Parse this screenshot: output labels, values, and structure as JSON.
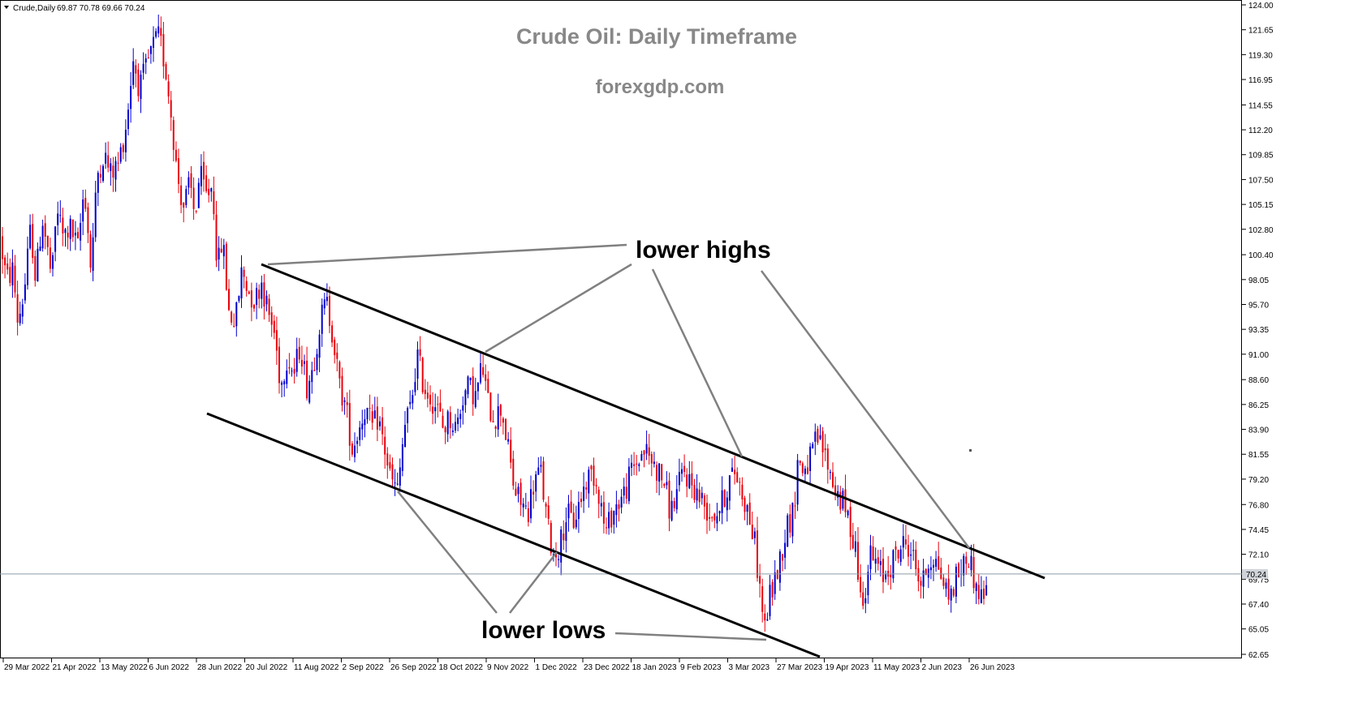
{
  "chart_data": {
    "type": "candlestick",
    "title": "Crude Oil: Daily Timeframe",
    "subtitle": "forexgdp.com",
    "header": {
      "symbol": "Crude,Daily",
      "ohlc": "69.87 70.78 69.66 70.24"
    },
    "last_price": "70.24",
    "colors": {
      "up": "#0000cc",
      "down": "#e8000b",
      "trendline": "#000000",
      "annotation_line": "#808080",
      "title": "#888888",
      "price_line": "#8c9aa6"
    },
    "y_range": [
      62.65,
      124.0
    ],
    "y_ticks": [
      "124.00",
      "121.65",
      "119.30",
      "116.95",
      "114.55",
      "112.20",
      "109.85",
      "107.50",
      "105.15",
      "102.80",
      "100.40",
      "98.05",
      "95.70",
      "93.35",
      "91.00",
      "88.60",
      "86.25",
      "83.90",
      "81.55",
      "79.20",
      "76.80",
      "74.45",
      "72.10",
      "69.75",
      "67.40",
      "65.05",
      "62.65"
    ],
    "x_tick_labels": [
      "29 Mar 2022",
      "21 Apr 2022",
      "13 May 2022",
      "6 Jun 2022",
      "28 Jun 2022",
      "20 Jul 2022",
      "11 Aug 2022",
      "2 Sep 2022",
      "26 Sep 2022",
      "18 Oct 2022",
      "9 Nov 2022",
      "1 Dec 2022",
      "23 Dec 2022",
      "18 Jan 2023",
      "9 Feb 2023",
      "3 Mar 2023",
      "27 Mar 2023",
      "19 Apr 2023",
      "11 May 2023",
      "2 Jun 2023",
      "26 Jun 2023"
    ],
    "annotations": [
      "lower highs",
      "lower lows"
    ],
    "price_path": [
      [
        0,
        102
      ],
      [
        8,
        98
      ],
      [
        16,
        99
      ],
      [
        22,
        94
      ],
      [
        30,
        97
      ],
      [
        38,
        103
      ],
      [
        44,
        98
      ],
      [
        52,
        104
      ],
      [
        58,
        101
      ],
      [
        64,
        98
      ],
      [
        70,
        105
      ],
      [
        78,
        102
      ],
      [
        86,
        103
      ],
      [
        96,
        101
      ],
      [
        104,
        107
      ],
      [
        112,
        99
      ],
      [
        120,
        108
      ],
      [
        128,
        110
      ],
      [
        136,
        108
      ],
      [
        146,
        109
      ],
      [
        156,
        113
      ],
      [
        164,
        119
      ],
      [
        172,
        116
      ],
      [
        180,
        118
      ],
      [
        188,
        120
      ],
      [
        196,
        121
      ],
      [
        204,
        118
      ],
      [
        212,
        113
      ],
      [
        218,
        108
      ],
      [
        226,
        105
      ],
      [
        234,
        107
      ],
      [
        240,
        104
      ],
      [
        246,
        108
      ],
      [
        254,
        106
      ],
      [
        262,
        107
      ],
      [
        268,
        99
      ],
      [
        274,
        102
      ],
      [
        282,
        95
      ],
      [
        290,
        94
      ],
      [
        298,
        99
      ],
      [
        306,
        97
      ],
      [
        314,
        96
      ],
      [
        322,
        98
      ],
      [
        330,
        95
      ],
      [
        338,
        93
      ],
      [
        346,
        88
      ],
      [
        354,
        91
      ],
      [
        362,
        89
      ],
      [
        370,
        92
      ],
      [
        378,
        88
      ],
      [
        386,
        90
      ],
      [
        394,
        94
      ],
      [
        402,
        96
      ],
      [
        410,
        93
      ],
      [
        418,
        88
      ],
      [
        426,
        86
      ],
      [
        434,
        82
      ],
      [
        442,
        84
      ],
      [
        450,
        86
      ],
      [
        458,
        84
      ],
      [
        466,
        85
      ],
      [
        474,
        82
      ],
      [
        482,
        79
      ],
      [
        490,
        78
      ],
      [
        498,
        84
      ],
      [
        506,
        86
      ],
      [
        514,
        91
      ],
      [
        522,
        88
      ],
      [
        530,
        87
      ],
      [
        538,
        86
      ],
      [
        546,
        84
      ],
      [
        554,
        85
      ],
      [
        562,
        84
      ],
      [
        570,
        87
      ],
      [
        578,
        88
      ],
      [
        586,
        87
      ],
      [
        594,
        90
      ],
      [
        602,
        86
      ],
      [
        610,
        85
      ],
      [
        618,
        86
      ],
      [
        626,
        82
      ],
      [
        634,
        78
      ],
      [
        642,
        77
      ],
      [
        650,
        76
      ],
      [
        658,
        79
      ],
      [
        666,
        80
      ],
      [
        674,
        75
      ],
      [
        682,
        72
      ],
      [
        690,
        73
      ],
      [
        698,
        76
      ],
      [
        706,
        75
      ],
      [
        714,
        77
      ],
      [
        722,
        79
      ],
      [
        730,
        80
      ],
      [
        738,
        78
      ],
      [
        746,
        74
      ],
      [
        754,
        76
      ],
      [
        762,
        77
      ],
      [
        770,
        78
      ],
      [
        778,
        80
      ],
      [
        786,
        81
      ],
      [
        794,
        82
      ],
      [
        802,
        81
      ],
      [
        810,
        80
      ],
      [
        818,
        79
      ],
      [
        826,
        76
      ],
      [
        834,
        78
      ],
      [
        842,
        80
      ],
      [
        850,
        79
      ],
      [
        858,
        78
      ],
      [
        866,
        77
      ],
      [
        874,
        76
      ],
      [
        882,
        76
      ],
      [
        890,
        77
      ],
      [
        898,
        79
      ],
      [
        906,
        80
      ],
      [
        914,
        78
      ],
      [
        922,
        76
      ],
      [
        930,
        73
      ],
      [
        936,
        69
      ],
      [
        942,
        65
      ],
      [
        948,
        68
      ],
      [
        956,
        70
      ],
      [
        962,
        72
      ],
      [
        970,
        75
      ],
      [
        978,
        76
      ],
      [
        982,
        81
      ],
      [
        990,
        80
      ],
      [
        998,
        81
      ],
      [
        1006,
        83
      ],
      [
        1014,
        82
      ],
      [
        1022,
        80
      ],
      [
        1030,
        78
      ],
      [
        1038,
        77
      ],
      [
        1046,
        75
      ],
      [
        1054,
        73
      ],
      [
        1060,
        68
      ],
      [
        1066,
        69
      ],
      [
        1072,
        72
      ],
      [
        1080,
        71
      ],
      [
        1088,
        70
      ],
      [
        1096,
        71
      ],
      [
        1104,
        72
      ],
      [
        1112,
        73
      ],
      [
        1120,
        73
      ],
      [
        1128,
        71
      ],
      [
        1136,
        69
      ],
      [
        1142,
        71
      ],
      [
        1148,
        72
      ],
      [
        1156,
        71
      ],
      [
        1164,
        69
      ],
      [
        1170,
        68
      ],
      [
        1178,
        70
      ],
      [
        1186,
        71
      ],
      [
        1194,
        72
      ],
      [
        1202,
        69
      ],
      [
        1210,
        68
      ],
      [
        1218,
        70
      ]
    ]
  }
}
